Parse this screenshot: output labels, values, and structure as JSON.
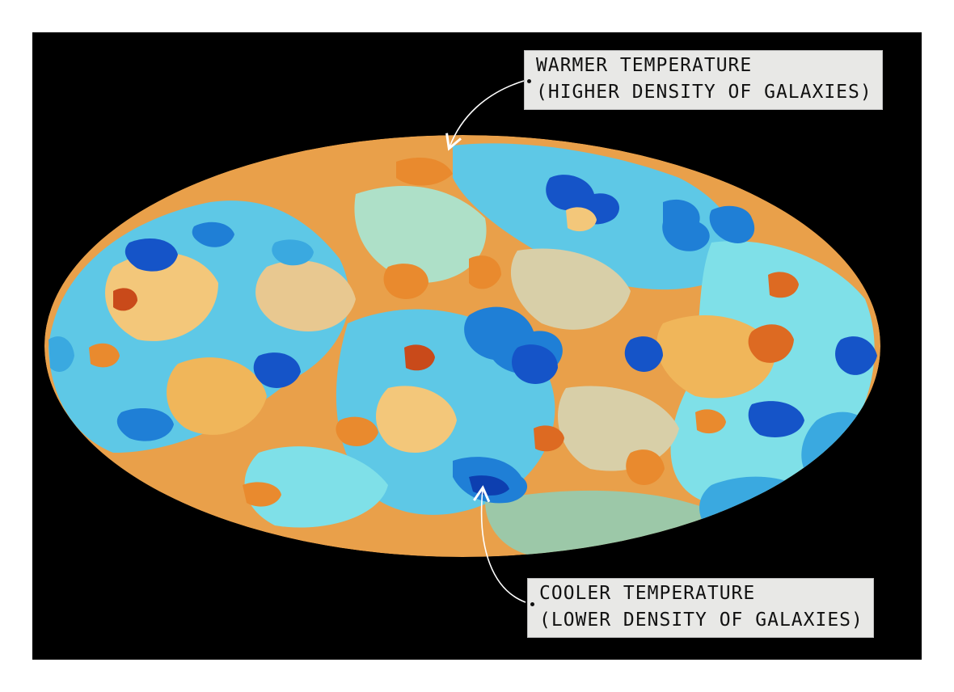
{
  "labels": {
    "warmer_line1": "WARMER TEMPERATURE",
    "warmer_line2": "(HIGHER DENSITY OF GALAXIES)",
    "cooler_line1": "COOLER TEMPERATURE",
    "cooler_line2": "(LOWER DENSITY OF GALAXIES)"
  },
  "colors": {
    "background": "#000000",
    "warm_palette": [
      "#e9a04a",
      "#f0b65a",
      "#f3c77a",
      "#e98a2e",
      "#dd6a22",
      "#c94a1a",
      "#e8c890",
      "#d8cfa8"
    ],
    "cool_palette": [
      "#5ec8e6",
      "#7fe0e8",
      "#3aa9e0",
      "#1f7fd6",
      "#1554c8",
      "#0d3fb0",
      "#aee0c8",
      "#9cc8a8"
    ],
    "label_box": "#e8e8e6"
  }
}
